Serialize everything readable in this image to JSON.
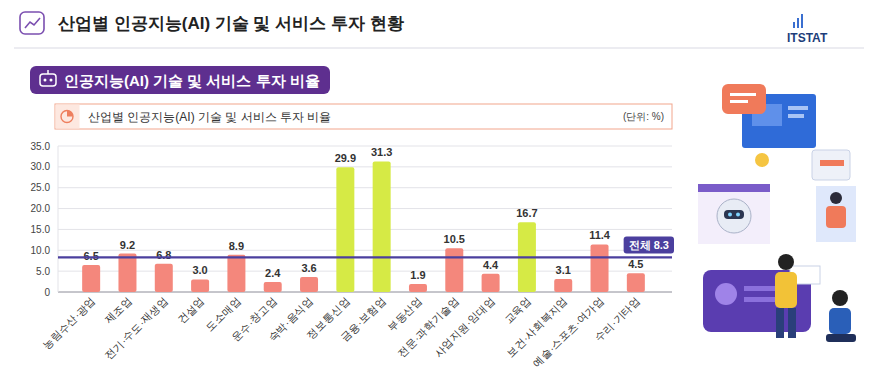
{
  "page": {
    "title": "산업별 인공지능(AI) 기술 및 서비스 투자 현황",
    "logo": "ITSTAT",
    "section": "인공지능(AI) 기술 및 서비스 투자 비율"
  },
  "chart_data": {
    "type": "bar",
    "title": "산업별 인공지능(AI) 기술 및 서비스 투자 비율",
    "subtitle": "(단위: %)",
    "categories": [
      "농림수산·광업",
      "제조업",
      "전기·수도·재생업",
      "건설업",
      "도소매업",
      "운수·창고업",
      "숙박·음식업",
      "정보통신업",
      "금융·보험업",
      "부동산업",
      "전문·과학기술업",
      "사업지원·임대업",
      "교육업",
      "보건·사회복지업",
      "예술·스포츠·여가업",
      "수리·기타업"
    ],
    "values": [
      6.5,
      9.2,
      6.8,
      3.0,
      8.9,
      2.4,
      3.6,
      29.9,
      31.3,
      1.9,
      10.5,
      4.4,
      16.7,
      3.1,
      11.4,
      4.5
    ],
    "value_labels": [
      "6.5",
      "9.2",
      "6.8",
      "3.0",
      "8.9",
      "2.4",
      "3.6",
      "29.9",
      "31.3",
      "1.9",
      "10.5",
      "4.4",
      "16.7",
      "3.1",
      "11.4",
      "4.5"
    ],
    "colors": [
      "#f4877c",
      "#f4877c",
      "#f4877c",
      "#f4877c",
      "#f4877c",
      "#f4877c",
      "#f4877c",
      "#d6ea45",
      "#d6ea45",
      "#f4877c",
      "#f4877c",
      "#f4877c",
      "#d6ea45",
      "#f4877c",
      "#f4877c",
      "#f4877c"
    ],
    "ylim": [
      0,
      35
    ],
    "yticks": [
      0,
      {
        "value": 5,
        "label": "5.0"
      },
      {
        "value": 10,
        "label": "10.0"
      },
      {
        "value": 15,
        "label": "15.0"
      },
      {
        "value": 20,
        "label": "20.0"
      },
      {
        "value": 25,
        "label": "25.0"
      },
      {
        "value": 30,
        "label": "30.0"
      },
      {
        "value": 35,
        "label": "35.0"
      }
    ],
    "grid": true,
    "data_labels": true,
    "annotations": [
      {
        "text": "전체 8.3",
        "value": 8.3
      }
    ]
  }
}
